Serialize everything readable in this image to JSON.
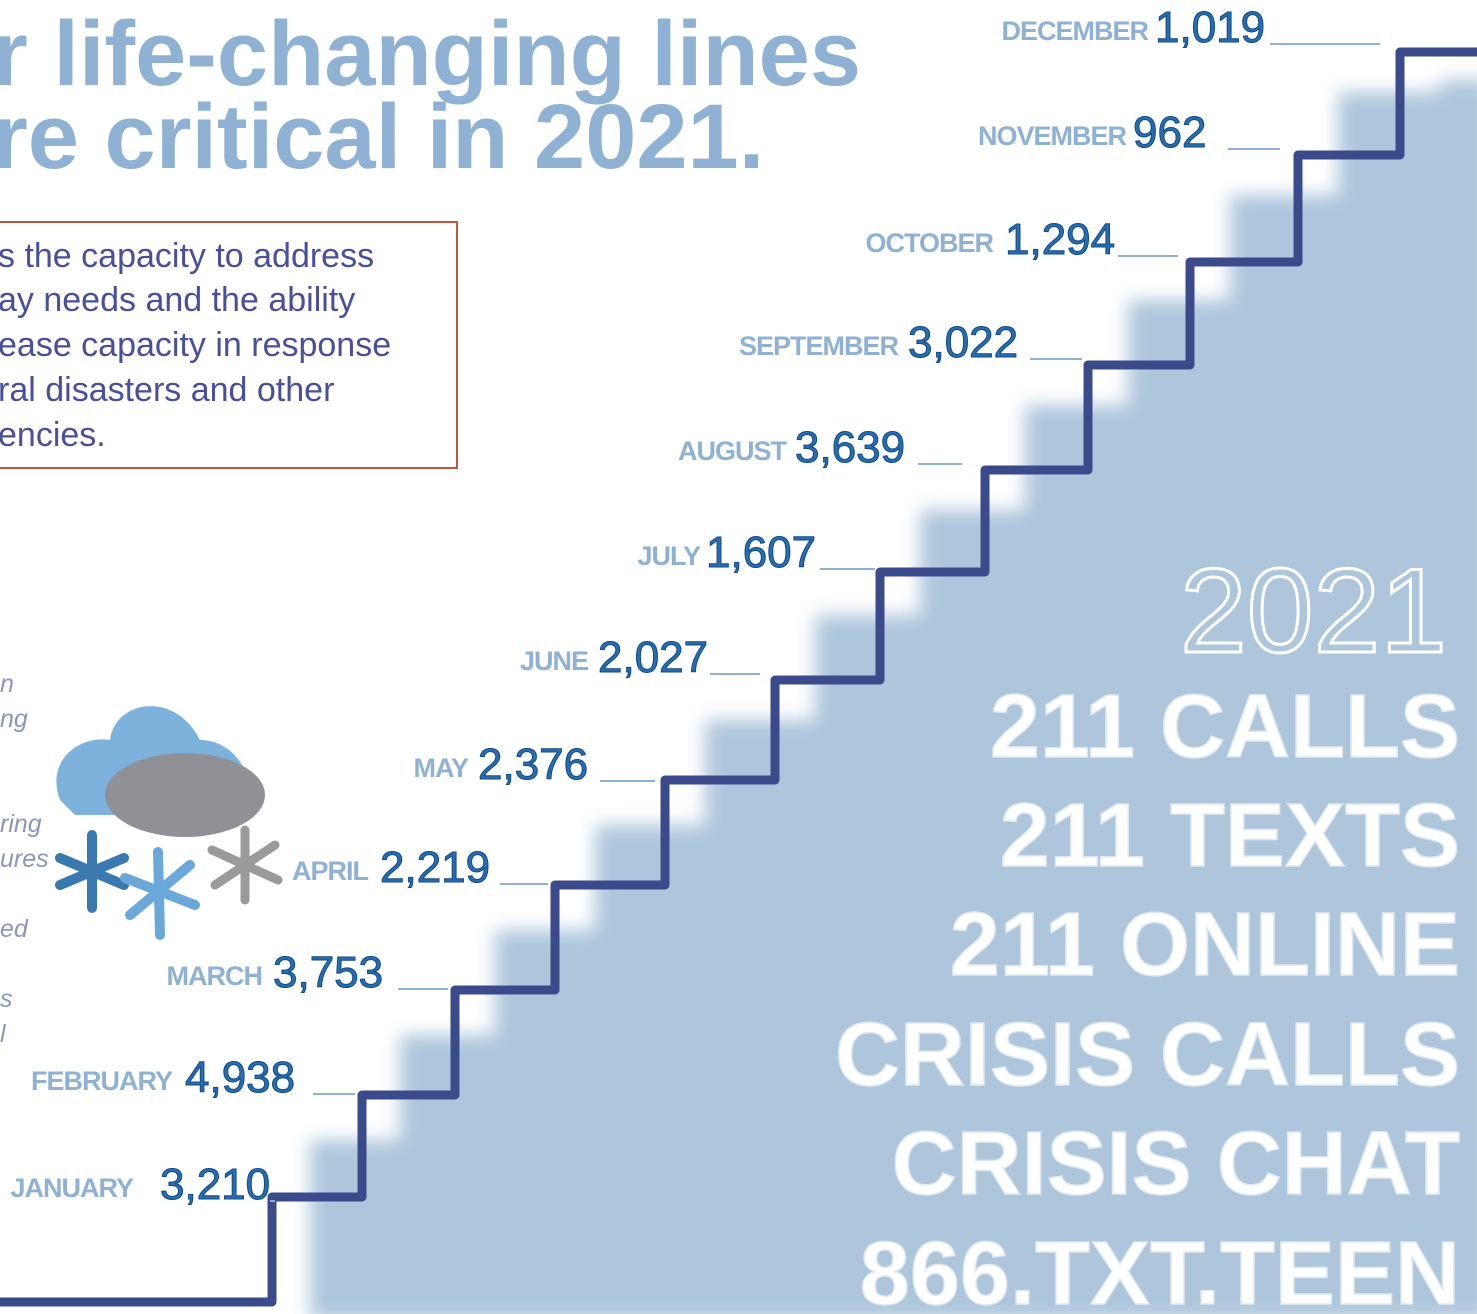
{
  "header": {
    "title_lines": [
      "r life-changing lines",
      "re critical in 2021."
    ]
  },
  "box": {
    "lines": [
      "s the capacity to address",
      "ay needs and the ability",
      "ease capacity in response",
      "ral disasters and other",
      "encies."
    ]
  },
  "side_fragments": [
    "n",
    "ng",
    "ring",
    "ures",
    "ed",
    "s",
    "l"
  ],
  "months": [
    {
      "name": "JANUARY",
      "value": "3,210"
    },
    {
      "name": "FEBRUARY",
      "value": "4,938"
    },
    {
      "name": "MARCH",
      "value": "3,753"
    },
    {
      "name": "APRIL",
      "value": "2,219"
    },
    {
      "name": "MAY",
      "value": "2,376"
    },
    {
      "name": "JUNE",
      "value": "2,027"
    },
    {
      "name": "JULY",
      "value": "1,607"
    },
    {
      "name": "AUGUST",
      "value": "3,639"
    },
    {
      "name": "SEPTEMBER",
      "value": "3,022"
    },
    {
      "name": "OCTOBER",
      "value": "1,294"
    },
    {
      "name": "NOVEMBER",
      "value": "962"
    },
    {
      "name": "DECEMBER",
      "value": "1,019"
    }
  ],
  "panel": {
    "year": "2021",
    "lines": [
      "211 CALLS",
      "211 TEXTS",
      "211 ONLINE",
      "CRISIS CALLS",
      "CRISIS CHAT",
      "866.TXT.TEEN"
    ]
  }
}
